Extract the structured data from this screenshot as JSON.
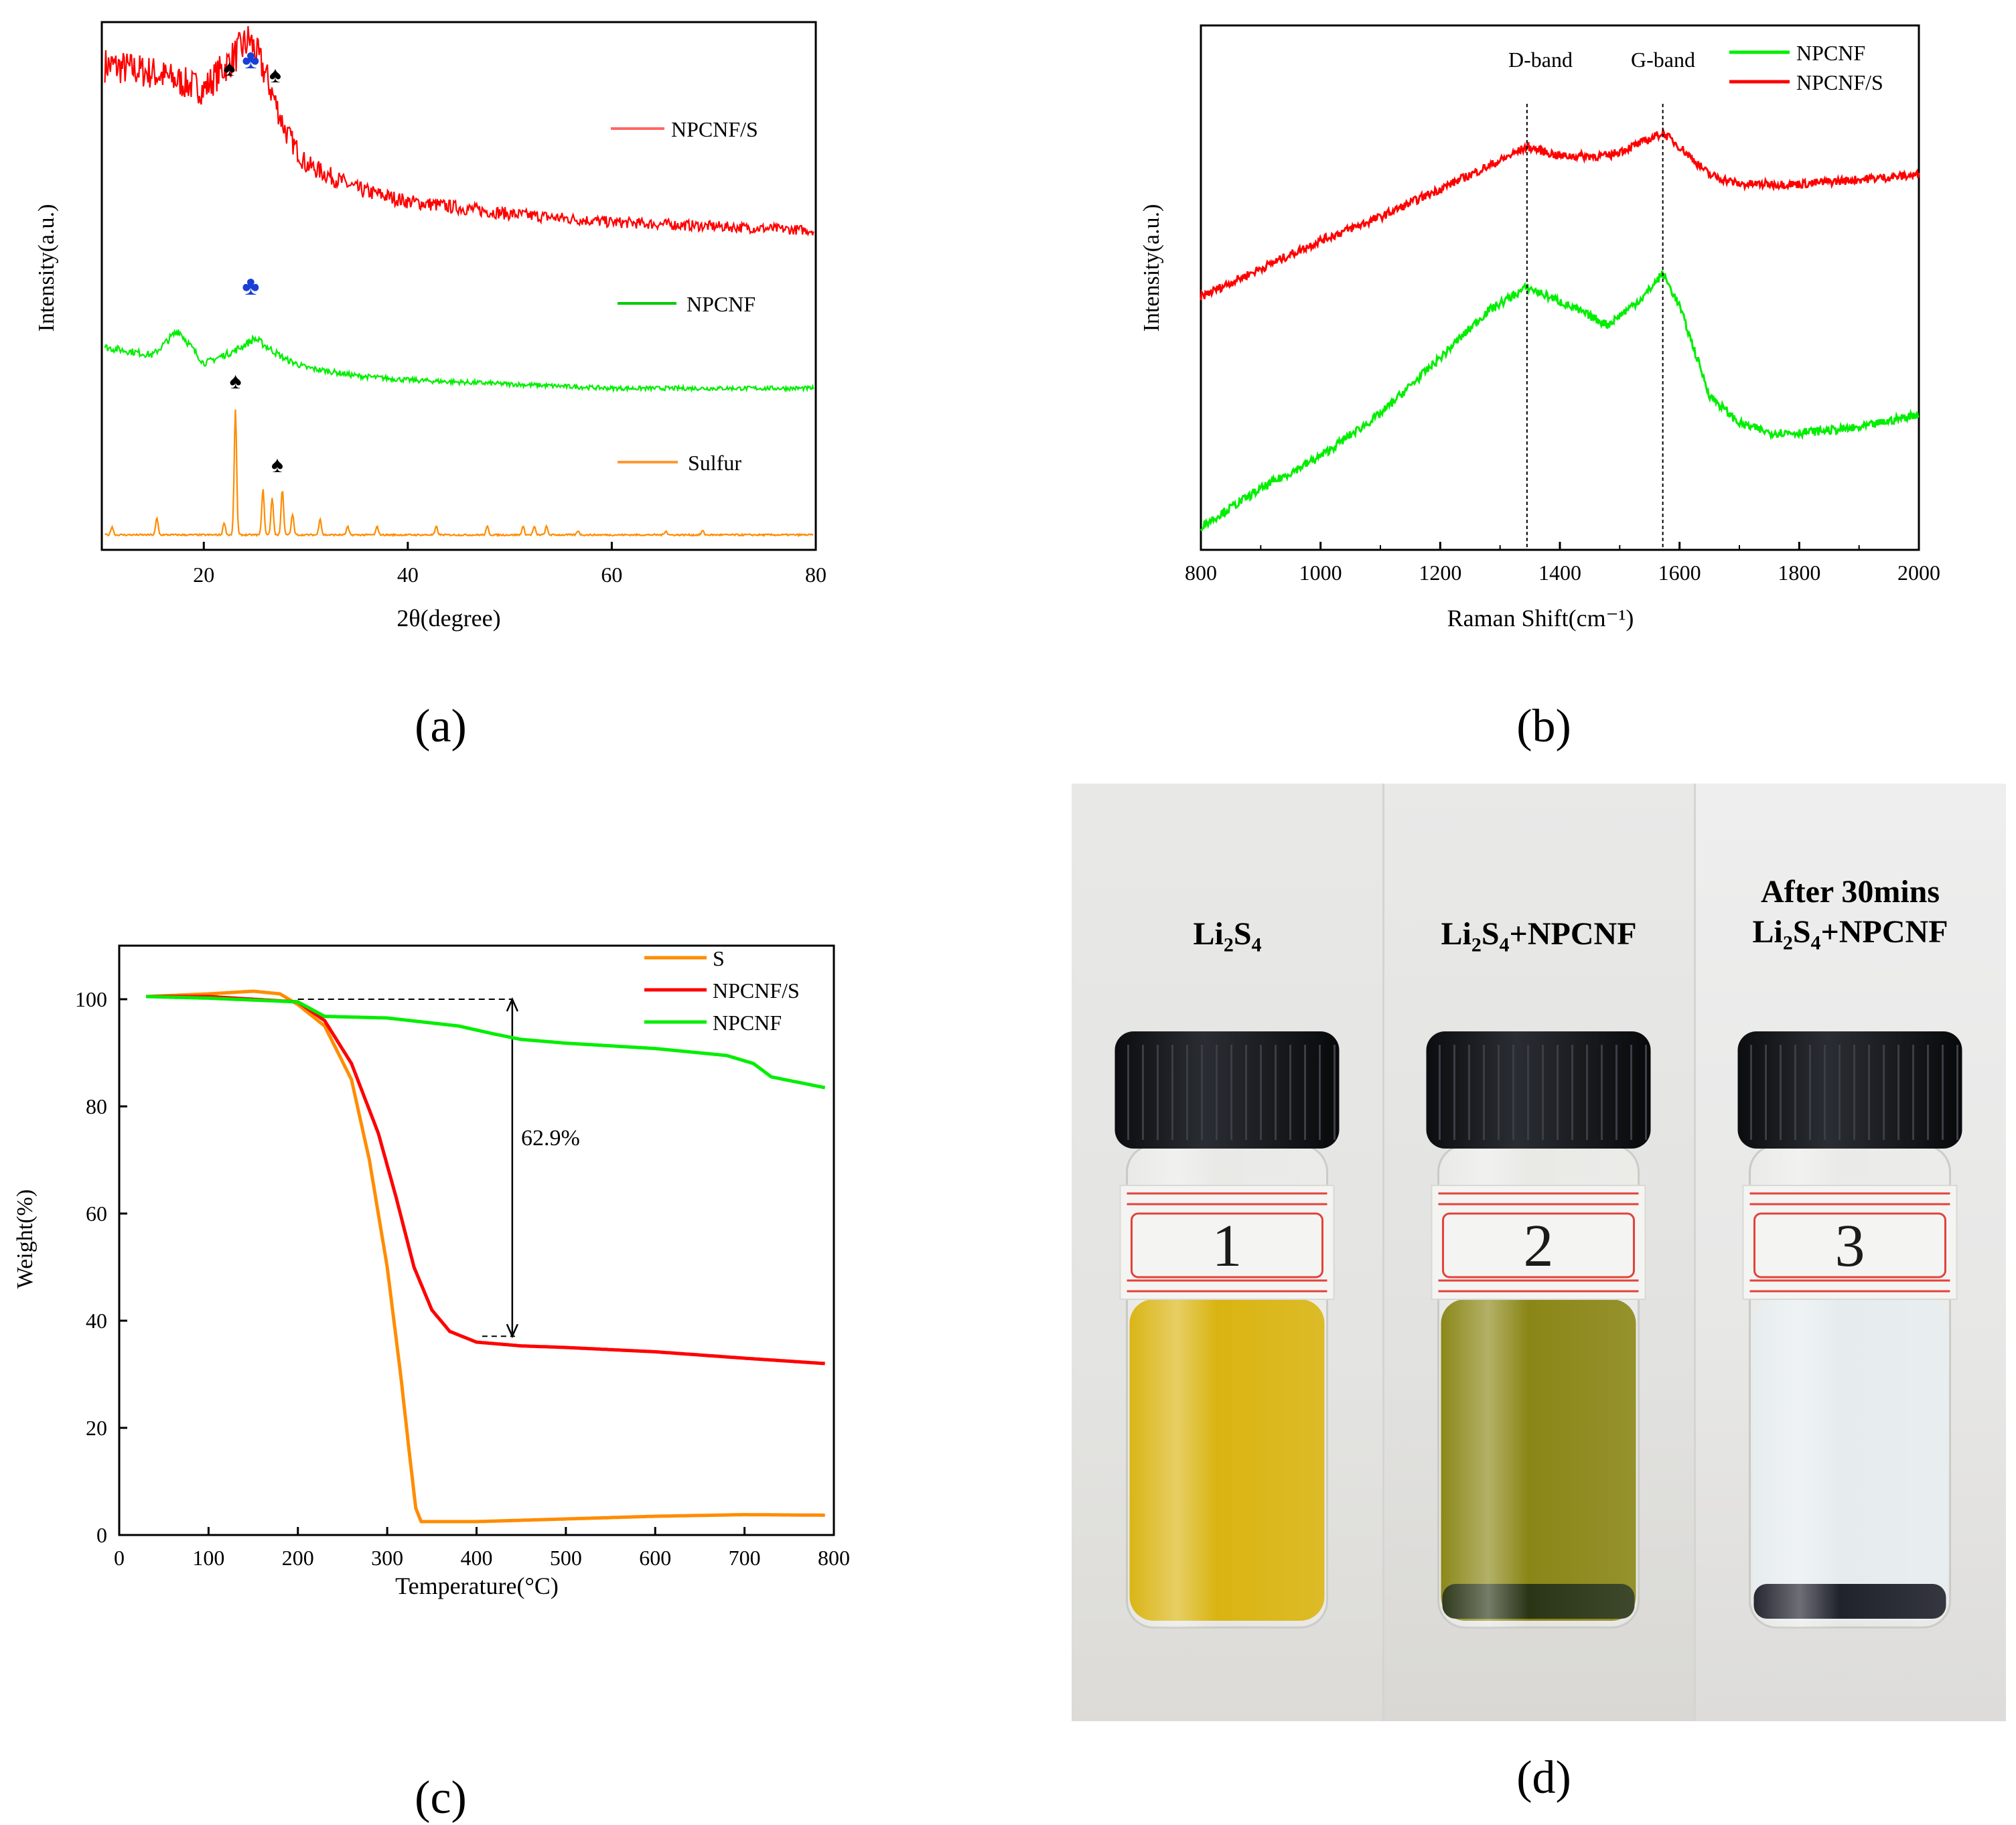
{
  "panels": {
    "a": {
      "caption": "(a)",
      "chart_data": {
        "type": "line",
        "xlabel": "2θ(degree)",
        "ylabel": "Intensity(a.u.)",
        "xlim": [
          10,
          80
        ],
        "xticks": [
          20,
          40,
          60,
          80
        ],
        "tick_labels": [
          "20",
          "40",
          "60",
          "80"
        ],
        "legend": [
          "NPCNF/S",
          "NPCNF",
          "Sulfur"
        ],
        "markers": [
          "♠",
          "♣",
          "♠",
          "♣",
          "♠",
          "♠"
        ],
        "series": [
          {
            "name": "NPCNF/S",
            "color": "#ff0000",
            "offset": 0.72,
            "x": [
              10,
              15,
              20,
              23,
              24.5,
              26,
              28,
              30,
              35,
              40,
              50,
              60,
              70,
              80
            ],
            "y": [
              0.42,
              0.4,
              0.36,
              0.44,
              0.48,
              0.4,
              0.26,
              0.18,
              0.12,
              0.09,
              0.06,
              0.04,
              0.03,
              0.02
            ]
          },
          {
            "name": "NPCNF",
            "color": "#00ee00",
            "offset": 0.36,
            "x": [
              10,
              15,
              17.5,
              20,
              23,
              25,
              28,
              30,
              35,
              40,
              50,
              60,
              70,
              80
            ],
            "y": [
              0.1,
              0.08,
              0.14,
              0.06,
              0.09,
              0.12,
              0.07,
              0.05,
              0.03,
              0.02,
              0.01,
              0.0,
              0.0,
              0.0
            ]
          },
          {
            "name": "Sulfur",
            "color": "#ff8c00",
            "offset": 0.0,
            "peaks": [
              [
                11,
                0.02
              ],
              [
                15.4,
                0.04
              ],
              [
                22.0,
                0.03
              ],
              [
                23.1,
                0.3
              ],
              [
                25.8,
                0.11
              ],
              [
                26.7,
                0.09
              ],
              [
                27.7,
                0.11
              ],
              [
                28.7,
                0.05
              ],
              [
                31.4,
                0.04
              ],
              [
                34.1,
                0.02
              ],
              [
                37.0,
                0.02
              ],
              [
                42.8,
                0.02
              ],
              [
                47.8,
                0.02
              ],
              [
                51.3,
                0.02
              ],
              [
                52.4,
                0.02
              ],
              [
                53.6,
                0.02
              ],
              [
                56.7,
                0.01
              ],
              [
                65.3,
                0.01
              ],
              [
                68.9,
                0.01
              ]
            ]
          }
        ]
      }
    },
    "b": {
      "caption": "(b)",
      "chart_data": {
        "type": "line",
        "xlabel": "Raman Shift(cm⁻¹)",
        "ylabel": "Intensity(a.u.)",
        "xlim": [
          800,
          2000
        ],
        "xticks": [
          800,
          1000,
          1200,
          1400,
          1600,
          1800,
          2000
        ],
        "tick_labels": [
          "800",
          "1000",
          "1200",
          "1400",
          "1600",
          "1800",
          "2000"
        ],
        "annotations": [
          "D-band",
          "G-band"
        ],
        "band_positions": [
          1345,
          1572
        ],
        "legend": [
          "NPCNF",
          "NPCNF/S"
        ],
        "series": [
          {
            "name": "NPCNF/S",
            "color": "#ff0000",
            "x": [
              800,
              900,
              1000,
              1100,
              1200,
              1300,
              1345,
              1400,
              1480,
              1540,
              1572,
              1600,
              1650,
              1700,
              1800,
              1900,
              2000
            ],
            "y": [
              0.54,
              0.6,
              0.66,
              0.71,
              0.77,
              0.83,
              0.86,
              0.84,
              0.84,
              0.87,
              0.89,
              0.86,
              0.8,
              0.78,
              0.78,
              0.79,
              0.8
            ]
          },
          {
            "name": "NPCNF",
            "color": "#00ee00",
            "x": [
              800,
              900,
              1000,
              1100,
              1200,
              1280,
              1345,
              1400,
              1480,
              1540,
              1572,
              1600,
              1650,
              1700,
              1750,
              1800,
              1900,
              2000
            ],
            "y": [
              0.05,
              0.13,
              0.2,
              0.29,
              0.41,
              0.51,
              0.56,
              0.53,
              0.48,
              0.54,
              0.59,
              0.52,
              0.33,
              0.27,
              0.25,
              0.25,
              0.26,
              0.29
            ]
          }
        ]
      }
    },
    "c": {
      "caption": "(c)",
      "chart_data": {
        "type": "line",
        "xlabel": "Temperature(°C)",
        "ylabel": "Weight(%)",
        "xlim": [
          0,
          800
        ],
        "ylim": [
          0,
          110
        ],
        "xticks": [
          0,
          100,
          200,
          300,
          400,
          500,
          600,
          700,
          800
        ],
        "yticks": [
          0,
          20,
          40,
          60,
          80,
          100
        ],
        "xtick_labels": [
          "0",
          "100",
          "200",
          "300",
          "400",
          "500",
          "600",
          "700",
          "800"
        ],
        "ytick_labels": [
          "0",
          "20",
          "40",
          "60",
          "80",
          "100"
        ],
        "annotation": "62.9%",
        "annotation_range": [
          37.1,
          100
        ],
        "annotation_x": 440,
        "legend": [
          "S",
          "NPCNF/S",
          "NPCNF"
        ],
        "series": [
          {
            "name": "S",
            "color": "#ff8c00",
            "x": [
              30,
              100,
              150,
              180,
              200,
              230,
              260,
              280,
              300,
              315,
              325,
              332,
              338,
              400,
              500,
              600,
              700,
              790
            ],
            "y": [
              100.5,
              101,
              101.5,
              101,
              99,
              95,
              85,
              70,
              50,
              30,
              15,
              5,
              2.5,
              2.5,
              3,
              3.5,
              3.8,
              3.7
            ]
          },
          {
            "name": "NPCNF/S",
            "color": "#ff0000",
            "x": [
              30,
              100,
              200,
              230,
              260,
              290,
              310,
              330,
              350,
              370,
              400,
              450,
              500,
              600,
              700,
              790
            ],
            "y": [
              100.5,
              100.5,
              99.5,
              96,
              88,
              75,
              63,
              50,
              42,
              38,
              36,
              35.3,
              35,
              34.2,
              33,
              32
            ]
          },
          {
            "name": "NPCNF",
            "color": "#00ee00",
            "x": [
              30,
              100,
              200,
              230,
              300,
              380,
              420,
              450,
              500,
              600,
              680,
              710,
              730,
              760,
              790
            ],
            "y": [
              100.5,
              100.2,
              99.5,
              96.8,
              96.5,
              95,
              93.5,
              92.5,
              91.8,
              90.8,
              89.5,
              88,
              85.5,
              84.5,
              83.5
            ]
          }
        ]
      }
    },
    "d": {
      "caption": "(d)",
      "vials": [
        {
          "label_lines": [
            "Li2S4"
          ],
          "number": "1",
          "liquid": "#d9b411",
          "sediment": ""
        },
        {
          "label_lines": [
            "Li2S4+NPCNF"
          ],
          "number": "2",
          "liquid": "#8a8616",
          "sediment": "#2a3516"
        },
        {
          "label_lines": [
            "After 30mins",
            "Li2S4+NPCNF"
          ],
          "number": "3",
          "liquid": "#e6ecee",
          "sediment": "#20222c"
        }
      ]
    }
  }
}
